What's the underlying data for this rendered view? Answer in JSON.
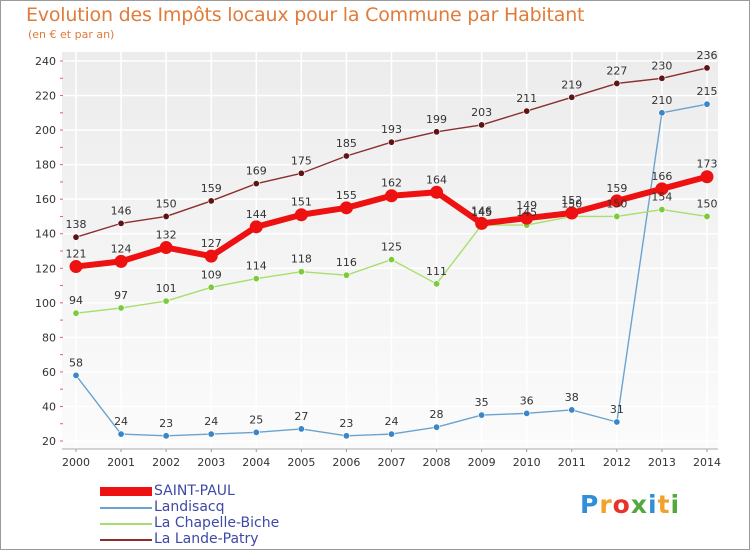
{
  "title": "Evolution des Impôts locaux pour la Commune par Habitant",
  "subtitle": "(en € et par an)",
  "logo": {
    "letters": [
      {
        "ch": "P",
        "color": "#2f8fd8"
      },
      {
        "ch": "r",
        "color": "#f0a22a"
      },
      {
        "ch": "o",
        "color": "#e8332a"
      },
      {
        "ch": "x",
        "color": "#53a93f"
      },
      {
        "ch": "i",
        "color": "#2f8fd8"
      },
      {
        "ch": "t",
        "color": "#f0a22a"
      },
      {
        "ch": "i",
        "color": "#53a93f"
      }
    ]
  },
  "chart_data": {
    "type": "line",
    "x": [
      2000,
      2001,
      2002,
      2003,
      2004,
      2005,
      2006,
      2007,
      2008,
      2009,
      2010,
      2011,
      2012,
      2013,
      2014
    ],
    "ylim": [
      20,
      240
    ],
    "yticks": [
      20,
      40,
      60,
      80,
      100,
      120,
      140,
      160,
      180,
      200,
      220,
      240
    ],
    "grid": true,
    "legend_position": "bottom-left",
    "series": [
      {
        "name": "La Lande-Patry",
        "color": "#8b2e2e",
        "point_color": "#5e1414",
        "values": [
          138,
          146,
          150,
          159,
          169,
          175,
          185,
          193,
          199,
          203,
          211,
          219,
          227,
          230,
          236
        ]
      },
      {
        "name": "Landisacq",
        "color": "#6aa3cf",
        "point_color": "#3a86c8",
        "values": [
          58,
          24,
          23,
          24,
          25,
          27,
          23,
          24,
          28,
          35,
          36,
          38,
          31,
          210,
          215
        ]
      },
      {
        "name": "La Chapelle-Biche",
        "color": "#a8df6c",
        "point_color": "#7bcb3a",
        "values": [
          94,
          97,
          101,
          109,
          114,
          118,
          116,
          125,
          111,
          145,
          145,
          150,
          150,
          154,
          150
        ]
      },
      {
        "name": "SAINT-PAUL",
        "color": "#ee1111",
        "point_color": "#ee1111",
        "values": [
          121,
          124,
          132,
          127,
          144,
          151,
          155,
          162,
          164,
          146,
          149,
          152,
          159,
          166,
          173
        ]
      }
    ],
    "legend_order": [
      "SAINT-PAUL",
      "Landisacq",
      "La Chapelle-Biche",
      "La Lande-Patry"
    ],
    "value_labels": {
      "La Lande-Patry": [
        "138",
        "146",
        "150",
        "159",
        "169",
        "175",
        "185",
        "193",
        "199",
        "203",
        "211",
        "219",
        "227",
        "230",
        "236"
      ],
      "Landisacq": [
        "58",
        "24",
        "23",
        "24",
        "25",
        "27",
        "23",
        "24",
        "28",
        "35",
        "36",
        "38",
        "31",
        "210",
        "215"
      ],
      "La Chapelle-Biche": [
        "94",
        "97",
        "101",
        "109",
        "114",
        "118",
        "116",
        "125",
        "111",
        "145",
        "145",
        "150",
        "150",
        "154",
        "150"
      ],
      "SAINT-PAUL": [
        "121",
        "124",
        "132",
        "127",
        "144",
        "151",
        "155",
        "162",
        "164",
        "146",
        "149",
        "152",
        "159",
        "166",
        "173"
      ]
    }
  }
}
